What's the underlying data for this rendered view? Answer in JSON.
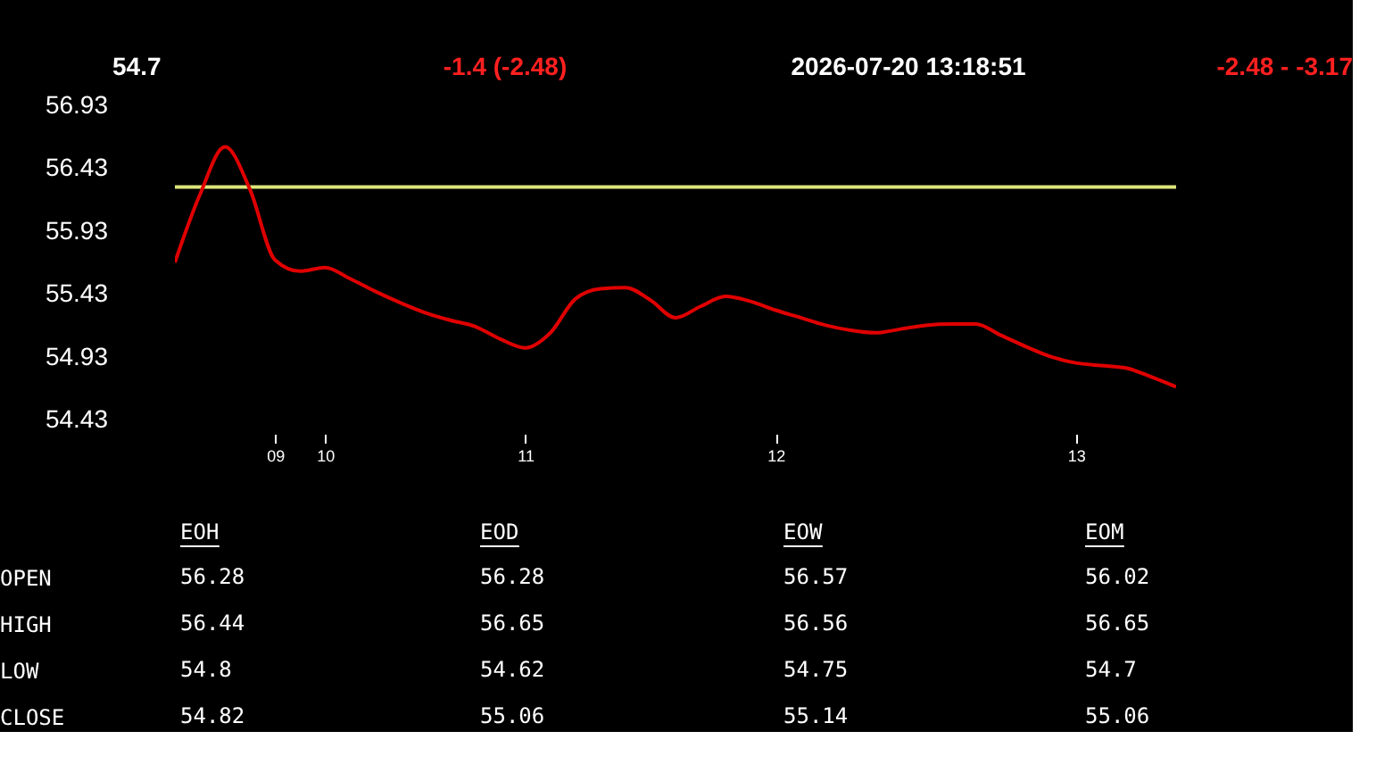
{
  "chart_data": [
    {
      "type": "line",
      "annotations": [
        "54.7",
        "-1.4  (-2.48)",
        "2026-07-20  13:18:51",
        "-2.48  -  -3.17"
      ],
      "categories": [
        null,
        null,
        null,
        null,
        "09",
        null,
        "10",
        null,
        null,
        null,
        null,
        null,
        null,
        null,
        "11",
        null,
        null,
        null,
        null,
        null,
        null,
        null,
        null,
        null,
        "12",
        null,
        null,
        null,
        null,
        null,
        null,
        null,
        null,
        null,
        null,
        null,
        "13",
        null,
        null,
        null,
        null
      ],
      "series": [
        {
          "color": "#e00000",
          "values": [
            55.68,
            56.22,
            56.6,
            56.26,
            55.7,
            55.61,
            55.64,
            55.55,
            55.45,
            55.36,
            55.28,
            55.22,
            55.17,
            55.07,
            55.0,
            55.12,
            55.39,
            55.47,
            55.48,
            55.38,
            55.24,
            55.33,
            55.41,
            55.37,
            55.3,
            55.24,
            55.18,
            55.14,
            55.12,
            55.15,
            55.18,
            55.19,
            55.19,
            55.1,
            55.01,
            54.93,
            54.88,
            54.86,
            54.84,
            54.77,
            54.69
          ]
        }
      ],
      "ref_lines": [
        {
          "axis": "y",
          "value": 56.28,
          "color": "#dce57a"
        }
      ],
      "ylim": [
        54.43,
        56.93
      ],
      "yticks": [
        54.43,
        54.93,
        55.43,
        55.93,
        56.43,
        56.93
      ],
      "grid": false,
      "marker": "none",
      "line_style": "solid"
    },
    {
      "type": "other",
      "categories": [
        "EOH",
        "EOD",
        "EOW",
        "EOM"
      ],
      "y_categories": [
        "OPEN",
        "HIGH",
        "LOW",
        "CLOSE"
      ],
      "cell_labels": [
        [
          "56.28",
          "56.28",
          "56.57",
          "56.02"
        ],
        [
          "56.44",
          "56.65",
          "56.56",
          "56.65"
        ],
        [
          "54.8",
          "54.62",
          "54.75",
          "54.7"
        ],
        [
          "54.82",
          "55.06",
          "55.14",
          "55.06"
        ]
      ]
    }
  ]
}
